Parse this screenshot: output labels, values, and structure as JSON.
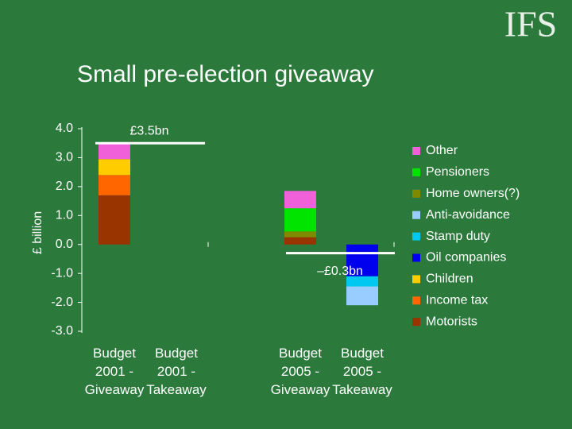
{
  "logo": "IFS",
  "chart_data": {
    "type": "stacked_bar",
    "title": "Small pre-election giveaway",
    "y_label": "£ billion",
    "categories": [
      "Budget 2001 - Giveaway",
      "Budget 2001 - Takeaway",
      "Budget 2005 - Giveaway",
      "Budget 2005 - Takeaway"
    ],
    "series": [
      {
        "name": "Other",
        "color": "#f060d8",
        "values": [
          0.55,
          0,
          0.6,
          0
        ]
      },
      {
        "name": "Pensioners",
        "color": "#00e400",
        "values": [
          0,
          0,
          0.8,
          0
        ]
      },
      {
        "name": "Home owners(?)",
        "color": "#7f8a00",
        "values": [
          0,
          0,
          0.2,
          0
        ]
      },
      {
        "name": "Anti-avoidance",
        "color": "#99ccff",
        "values": [
          0,
          0,
          0,
          -0.65
        ]
      },
      {
        "name": "Stamp duty",
        "color": "#00c8f0",
        "values": [
          0,
          0,
          0,
          -0.35
        ]
      },
      {
        "name": "Oil companies",
        "color": "#0000ee",
        "values": [
          0,
          0,
          0,
          -1.1
        ]
      },
      {
        "name": "Children",
        "color": "#ffcc00",
        "values": [
          0.55,
          0,
          0,
          0
        ]
      },
      {
        "name": "Income tax",
        "color": "#ff6600",
        "values": [
          0.7,
          0,
          0,
          0
        ]
      },
      {
        "name": "Motorists",
        "color": "#993300",
        "values": [
          1.7,
          0,
          0.25,
          0
        ]
      }
    ],
    "annotations": [
      {
        "text": "£3.5bn",
        "value": 3.5
      },
      {
        "text": "–£0.3bn",
        "value": -0.3
      }
    ],
    "ylim": [
      -3,
      4
    ],
    "yticks": [
      {
        "value": 4,
        "label": "4.0"
      },
      {
        "value": 3,
        "label": "3.0"
      },
      {
        "value": 2,
        "label": "2.0"
      },
      {
        "value": 1,
        "label": "1.0"
      },
      {
        "value": 0,
        "label": "0.0"
      },
      {
        "value": -1,
        "label": "-1.0"
      },
      {
        "value": -2,
        "label": "-2.0"
      },
      {
        "value": -3,
        "label": "-3.0"
      }
    ],
    "legend": "right"
  }
}
